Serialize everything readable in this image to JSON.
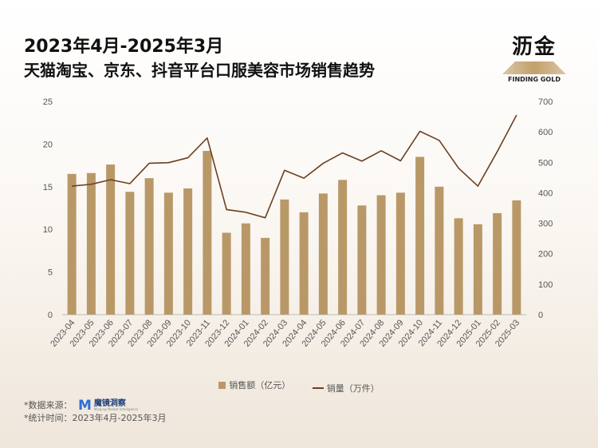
{
  "header": {
    "title_line1": "2023年4月-2025年3月",
    "title_line2": "天猫淘宝、京东、抖音平台口服美容市场销售趋势"
  },
  "logo": {
    "cn": "沥金",
    "en": "FINDING GOLD"
  },
  "legend": {
    "bar_label": "销售额（亿元）",
    "line_label": "销量（万件）"
  },
  "source": {
    "line1": "*数据来源：",
    "brand": "魔镜洞察",
    "brand_sub": "Moojing Market Intelligence",
    "line2": "*统计时间：2023年4月-2025年3月"
  },
  "colors": {
    "bar": "#b99868",
    "line": "#6b3f1f",
    "axis": "#555555"
  },
  "chart_data": {
    "type": "bar",
    "categories": [
      "2023-04",
      "2023-05",
      "2023-06",
      "2023-07",
      "2023-08",
      "2023-09",
      "2023-10",
      "2023-11",
      "2023-12",
      "2024-01",
      "2024-02",
      "2024-03",
      "2024-04",
      "2024-05",
      "2024-06",
      "2024-07",
      "2024-08",
      "2024-09",
      "2024-10",
      "2024-11",
      "2024-12",
      "2025-01",
      "2025-02",
      "2025-03"
    ],
    "series": [
      {
        "name": "销售额（亿元）",
        "type": "bar",
        "axis": "left",
        "values": [
          16.5,
          16.6,
          17.6,
          14.4,
          16.0,
          14.3,
          14.8,
          19.2,
          9.6,
          10.7,
          9.0,
          13.5,
          12.0,
          14.2,
          15.8,
          12.8,
          14.0,
          14.3,
          18.5,
          15.0,
          11.3,
          10.6,
          11.9,
          13.4
        ]
      },
      {
        "name": "销量（万件）",
        "type": "line",
        "axis": "right",
        "values": [
          422,
          428,
          443,
          430,
          497,
          499,
          515,
          580,
          345,
          336,
          318,
          474,
          448,
          497,
          531,
          504,
          538,
          505,
          602,
          572,
          481,
          422,
          535,
          655
        ]
      }
    ],
    "yleft": {
      "lim": [
        0,
        25
      ],
      "ticks": [
        0,
        5,
        10,
        15,
        20,
        25
      ]
    },
    "yright": {
      "lim": [
        0,
        700
      ],
      "ticks": [
        0,
        100,
        200,
        300,
        400,
        500,
        600,
        700
      ]
    },
    "grid": false,
    "legend_position": "bottom"
  }
}
